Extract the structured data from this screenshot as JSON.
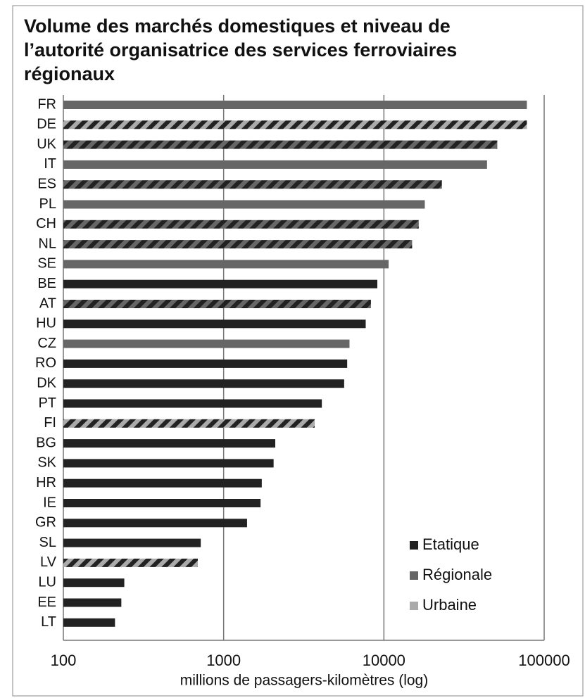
{
  "chart_data": {
    "type": "bar",
    "orientation": "horizontal",
    "title": "Volume des marchés domestiques et niveau de l’autorité organisatrice des services ferroviaires régionaux",
    "x_label": "millions de passagers-kilomètres (log)",
    "categories": [
      "FR",
      "DE",
      "UK",
      "IT",
      "ES",
      "PL",
      "CH",
      "NL",
      "SE",
      "BE",
      "AT",
      "HU",
      "CZ",
      "RO",
      "DK",
      "PT",
      "FI",
      "BG",
      "SK",
      "HR",
      "IE",
      "GR",
      "SL",
      "LV",
      "LU",
      "EE",
      "LT"
    ],
    "series": [
      {
        "name": "Etatique",
        "color": "#222222",
        "values": [
          null,
          null,
          null,
          null,
          null,
          null,
          null,
          null,
          null,
          9100,
          null,
          7700,
          null,
          5900,
          5650,
          4100,
          null,
          2100,
          2050,
          1730,
          1700,
          1400,
          720,
          null,
          240,
          230,
          210
        ]
      },
      {
        "name": "Régionale",
        "color": "#666666",
        "values": [
          78000,
          null,
          51000,
          44000,
          23000,
          18000,
          16500,
          15000,
          10700,
          null,
          8300,
          null,
          6100,
          null,
          null,
          null,
          null,
          null,
          null,
          null,
          null,
          null,
          null,
          null,
          null,
          null,
          null
        ]
      },
      {
        "name": "Urbaine",
        "color": "#aaaaaa",
        "values": [
          null,
          78000,
          null,
          null,
          null,
          null,
          null,
          null,
          null,
          null,
          null,
          null,
          null,
          null,
          null,
          null,
          3700,
          null,
          null,
          null,
          null,
          null,
          null,
          690,
          null,
          null,
          null
        ]
      }
    ],
    "hatched": [
      false,
      true,
      true,
      false,
      true,
      false,
      true,
      true,
      false,
      false,
      true,
      false,
      false,
      false,
      false,
      false,
      true,
      false,
      false,
      false,
      false,
      false,
      false,
      true,
      false,
      false,
      false
    ],
    "hatch_color": "#222222",
    "xlim": [
      100,
      100000
    ],
    "xticks": [
      100,
      1000,
      10000,
      100000
    ],
    "log_x": true,
    "grid": true,
    "legend": "bottom-right"
  }
}
